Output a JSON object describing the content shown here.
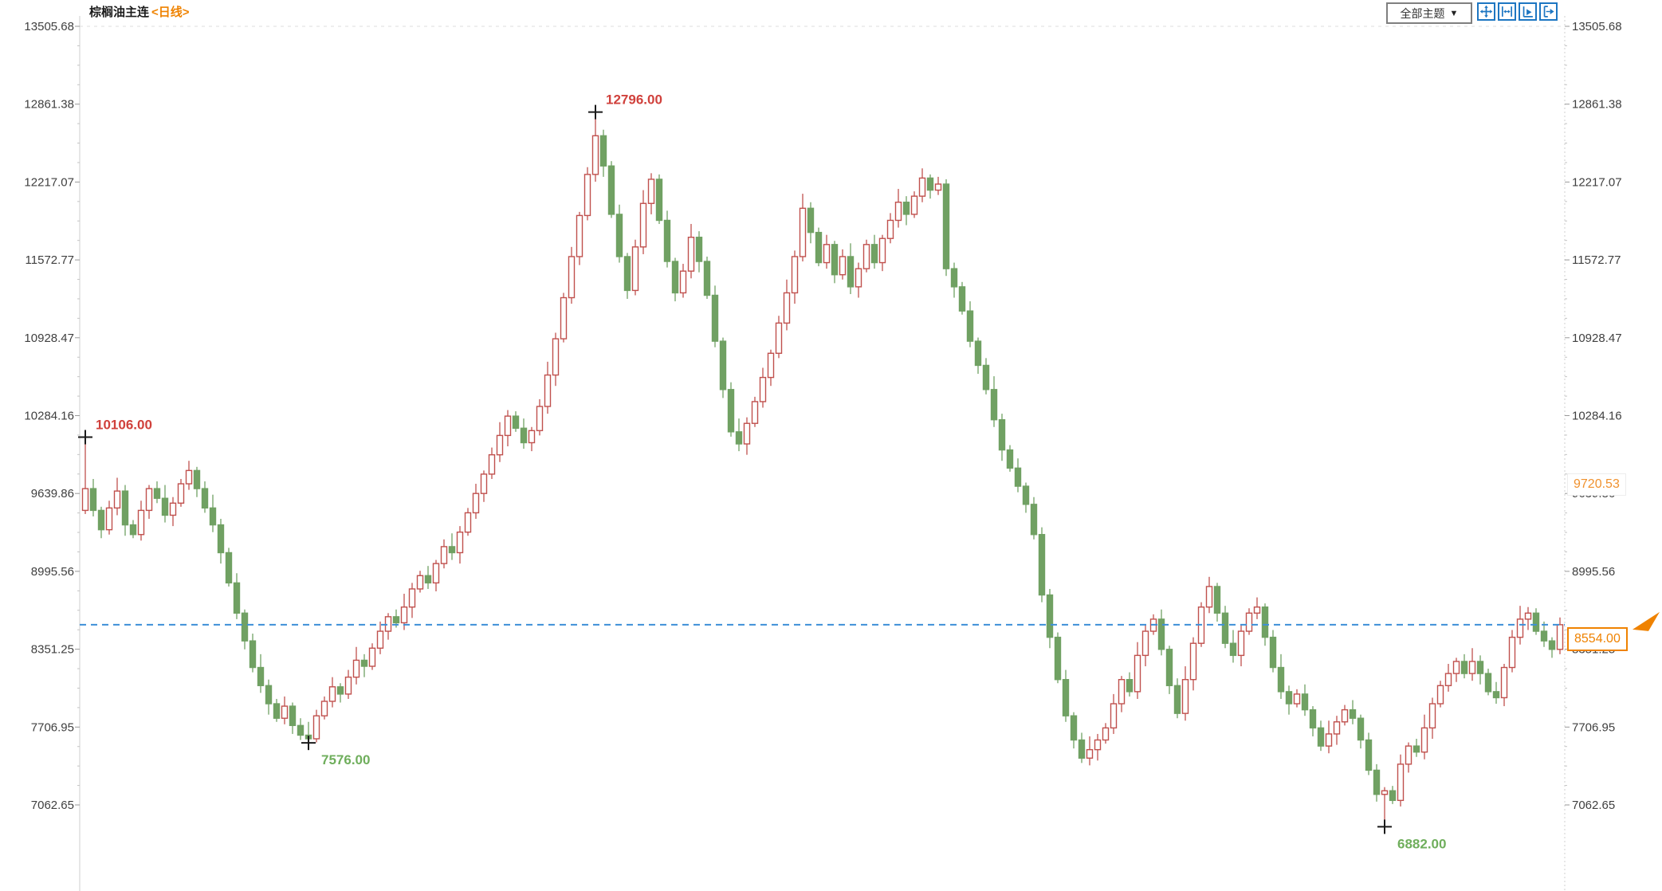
{
  "header": {
    "title": "棕榈油主连",
    "period_tag": "<日线>"
  },
  "toolbar": {
    "theme_dropdown_label": "全部主题",
    "dropdown_arrow": "▼",
    "icons": [
      "pan-icon",
      "fit-y-axis-icon",
      "fit-x-axis-icon",
      "scroll-right-icon"
    ]
  },
  "colors": {
    "up": "#c0504d",
    "down": "#70a163",
    "current_line": "#3d8fd8",
    "accent_orange": "#ef8200",
    "axis_text": "#3f3f3f",
    "grid": "#cfcfcf",
    "marker_cross": "#1a1a1a"
  },
  "price_labels": {
    "current": "8554.00",
    "reference": "9720.53"
  },
  "chart_data": {
    "type": "candlestick",
    "title": "棕榈油主连 日线",
    "legend_position": "none",
    "grid": "top-line-only",
    "y_axis": {
      "tick_labels": [
        "13505.68",
        "12861.38",
        "12217.07",
        "11572.77",
        "10928.47",
        "10284.16",
        "9639.86",
        "8995.56",
        "8351.25",
        "7706.95",
        "7062.65"
      ],
      "tick_prices": [
        13505.68,
        12861.38,
        12217.07,
        11572.77,
        10928.47,
        10284.16,
        9639.86,
        8995.56,
        8351.25,
        7706.95,
        7062.65
      ],
      "top_price": 13505.68,
      "bottom_price": 7062.65
    },
    "current_price": 8554.0,
    "reference_price": 9720.53,
    "annotations": [
      {
        "text": "10106.00",
        "price": 10106,
        "index": 0,
        "kind": "high",
        "color": "#d0413c"
      },
      {
        "text": "12796.00",
        "price": 12796,
        "index": 64,
        "kind": "high",
        "color": "#d0413c"
      },
      {
        "text": "7576.00",
        "price": 7576,
        "index": 28,
        "kind": "low",
        "color": "#6fae5c"
      },
      {
        "text": "6882.00",
        "price": 6882,
        "index": 163,
        "kind": "low",
        "color": "#6fae5c"
      }
    ],
    "candles": [
      [
        9500,
        10106,
        9470,
        9680
      ],
      [
        9680,
        9760,
        9450,
        9500
      ],
      [
        9500,
        9530,
        9270,
        9340
      ],
      [
        9340,
        9580,
        9300,
        9520
      ],
      [
        9520,
        9770,
        9460,
        9660
      ],
      [
        9660,
        9710,
        9290,
        9380
      ],
      [
        9380,
        9420,
        9270,
        9300
      ],
      [
        9300,
        9580,
        9250,
        9500
      ],
      [
        9500,
        9710,
        9430,
        9680
      ],
      [
        9680,
        9740,
        9560,
        9600
      ],
      [
        9600,
        9710,
        9400,
        9460
      ],
      [
        9460,
        9610,
        9370,
        9560
      ],
      [
        9560,
        9760,
        9530,
        9720
      ],
      [
        9720,
        9910,
        9670,
        9830
      ],
      [
        9830,
        9860,
        9610,
        9680
      ],
      [
        9680,
        9740,
        9480,
        9520
      ],
      [
        9520,
        9630,
        9320,
        9380
      ],
      [
        9380,
        9430,
        9060,
        9150
      ],
      [
        9150,
        9190,
        8870,
        8900
      ],
      [
        8900,
        8980,
        8600,
        8650
      ],
      [
        8650,
        8680,
        8350,
        8420
      ],
      [
        8420,
        8480,
        8160,
        8200
      ],
      [
        8200,
        8310,
        7990,
        8050
      ],
      [
        8050,
        8100,
        7810,
        7900
      ],
      [
        7900,
        7940,
        7750,
        7780
      ],
      [
        7780,
        7960,
        7730,
        7880
      ],
      [
        7880,
        7910,
        7650,
        7720
      ],
      [
        7720,
        7780,
        7600,
        7640
      ],
      [
        7640,
        7750,
        7576,
        7610
      ],
      [
        7610,
        7850,
        7580,
        7800
      ],
      [
        7800,
        7960,
        7770,
        7920
      ],
      [
        7920,
        8120,
        7870,
        8040
      ],
      [
        8040,
        8070,
        7910,
        7980
      ],
      [
        7980,
        8180,
        7940,
        8120
      ],
      [
        8120,
        8370,
        8060,
        8260
      ],
      [
        8260,
        8310,
        8120,
        8210
      ],
      [
        8210,
        8400,
        8180,
        8360
      ],
      [
        8360,
        8580,
        8310,
        8500
      ],
      [
        8500,
        8650,
        8430,
        8620
      ],
      [
        8620,
        8680,
        8530,
        8570
      ],
      [
        8570,
        8810,
        8510,
        8700
      ],
      [
        8700,
        8900,
        8610,
        8850
      ],
      [
        8850,
        9000,
        8820,
        8960
      ],
      [
        8960,
        9040,
        8850,
        8900
      ],
      [
        8900,
        9090,
        8830,
        9060
      ],
      [
        9060,
        9260,
        9020,
        9200
      ],
      [
        9200,
        9310,
        9090,
        9150
      ],
      [
        9150,
        9370,
        9060,
        9320
      ],
      [
        9320,
        9520,
        9290,
        9480
      ],
      [
        9480,
        9720,
        9430,
        9640
      ],
      [
        9640,
        9830,
        9570,
        9800
      ],
      [
        9800,
        10020,
        9760,
        9960
      ],
      [
        9960,
        10230,
        9900,
        10120
      ],
      [
        10120,
        10330,
        10030,
        10280
      ],
      [
        10280,
        10320,
        10150,
        10180
      ],
      [
        10180,
        10260,
        10010,
        10060
      ],
      [
        10060,
        10190,
        9990,
        10160
      ],
      [
        10160,
        10420,
        10120,
        10360
      ],
      [
        10360,
        10730,
        10300,
        10620
      ],
      [
        10620,
        10970,
        10530,
        10920
      ],
      [
        10920,
        11300,
        10890,
        11260
      ],
      [
        11260,
        11680,
        11210,
        11600
      ],
      [
        11600,
        11970,
        11530,
        11940
      ],
      [
        11940,
        12340,
        11900,
        12280
      ],
      [
        12280,
        12796,
        12220,
        12600
      ],
      [
        12600,
        12650,
        12260,
        12350
      ],
      [
        12350,
        12390,
        11920,
        11950
      ],
      [
        11950,
        12030,
        11550,
        11600
      ],
      [
        11600,
        11630,
        11250,
        11320
      ],
      [
        11320,
        11740,
        11280,
        11680
      ],
      [
        11680,
        12150,
        11620,
        12040
      ],
      [
        12040,
        12290,
        11950,
        12240
      ],
      [
        12240,
        12280,
        11870,
        11900
      ],
      [
        11900,
        11980,
        11510,
        11560
      ],
      [
        11560,
        11590,
        11230,
        11300
      ],
      [
        11300,
        11540,
        11260,
        11480
      ],
      [
        11480,
        11870,
        11420,
        11760
      ],
      [
        11760,
        11810,
        11470,
        11560
      ],
      [
        11560,
        11600,
        11250,
        11280
      ],
      [
        11280,
        11360,
        10850,
        10900
      ],
      [
        10900,
        10930,
        10430,
        10500
      ],
      [
        10500,
        10560,
        10110,
        10150
      ],
      [
        10150,
        10260,
        9990,
        10050
      ],
      [
        10050,
        10270,
        9960,
        10220
      ],
      [
        10220,
        10440,
        10190,
        10400
      ],
      [
        10400,
        10680,
        10350,
        10600
      ],
      [
        10600,
        10830,
        10530,
        10800
      ],
      [
        10800,
        11110,
        10760,
        11050
      ],
      [
        11050,
        11410,
        10990,
        11300
      ],
      [
        11300,
        11650,
        11210,
        11600
      ],
      [
        11600,
        12120,
        11560,
        12000
      ],
      [
        12000,
        12050,
        11710,
        11800
      ],
      [
        11800,
        11840,
        11520,
        11550
      ],
      [
        11550,
        11780,
        11500,
        11700
      ],
      [
        11700,
        11730,
        11380,
        11450
      ],
      [
        11450,
        11660,
        11410,
        11600
      ],
      [
        11600,
        11710,
        11290,
        11350
      ],
      [
        11350,
        11550,
        11260,
        11500
      ],
      [
        11500,
        11740,
        11470,
        11700
      ],
      [
        11700,
        11780,
        11500,
        11550
      ],
      [
        11550,
        11780,
        11480,
        11750
      ],
      [
        11750,
        11960,
        11710,
        11900
      ],
      [
        11900,
        12160,
        11840,
        12050
      ],
      [
        12050,
        12100,
        11860,
        11950
      ],
      [
        11950,
        12140,
        11920,
        12100
      ],
      [
        12100,
        12330,
        12050,
        12250
      ],
      [
        12250,
        12280,
        12080,
        12150
      ],
      [
        12150,
        12260,
        12110,
        12200
      ],
      [
        12200,
        12240,
        11440,
        11500
      ],
      [
        11500,
        11550,
        11260,
        11350
      ],
      [
        11350,
        11390,
        11120,
        11150
      ],
      [
        11150,
        11230,
        10850,
        10900
      ],
      [
        10900,
        10930,
        10630,
        10700
      ],
      [
        10700,
        10760,
        10460,
        10500
      ],
      [
        10500,
        10610,
        10190,
        10250
      ],
      [
        10250,
        10300,
        9910,
        10000
      ],
      [
        10000,
        10040,
        9820,
        9850
      ],
      [
        9850,
        9930,
        9650,
        9700
      ],
      [
        9700,
        9730,
        9480,
        9550
      ],
      [
        9550,
        9610,
        9260,
        9300
      ],
      [
        9300,
        9360,
        8740,
        8800
      ],
      [
        8800,
        8850,
        8360,
        8450
      ],
      [
        8450,
        8490,
        8070,
        8100
      ],
      [
        8100,
        8180,
        7750,
        7800
      ],
      [
        7800,
        7830,
        7530,
        7600
      ],
      [
        7600,
        7660,
        7410,
        7450
      ],
      [
        7450,
        7630,
        7390,
        7520
      ],
      [
        7520,
        7650,
        7430,
        7600
      ],
      [
        7600,
        7740,
        7570,
        7700
      ],
      [
        7700,
        7980,
        7650,
        7900
      ],
      [
        7900,
        8130,
        7830,
        8100
      ],
      [
        8100,
        8160,
        7960,
        8000
      ],
      [
        8000,
        8410,
        7940,
        8300
      ],
      [
        8300,
        8550,
        8210,
        8500
      ],
      [
        8500,
        8640,
        8470,
        8600
      ],
      [
        8600,
        8680,
        8300,
        8350
      ],
      [
        8350,
        8380,
        7980,
        8050
      ],
      [
        8050,
        8110,
        7780,
        7820
      ],
      [
        7820,
        8210,
        7760,
        8100
      ],
      [
        8100,
        8450,
        8010,
        8400
      ],
      [
        8400,
        8740,
        8370,
        8700
      ],
      [
        8700,
        8950,
        8650,
        8870
      ],
      [
        8870,
        8900,
        8580,
        8650
      ],
      [
        8650,
        8710,
        8360,
        8400
      ],
      [
        8400,
        8510,
        8240,
        8300
      ],
      [
        8300,
        8550,
        8210,
        8500
      ],
      [
        8500,
        8690,
        8470,
        8650
      ],
      [
        8650,
        8780,
        8600,
        8700
      ],
      [
        8700,
        8730,
        8380,
        8450
      ],
      [
        8450,
        8510,
        8160,
        8200
      ],
      [
        8200,
        8310,
        7940,
        8000
      ],
      [
        8000,
        8050,
        7810,
        7900
      ],
      [
        7900,
        8020,
        7870,
        7980
      ],
      [
        7980,
        8060,
        7800,
        7850
      ],
      [
        7850,
        7880,
        7630,
        7700
      ],
      [
        7700,
        7760,
        7510,
        7550
      ],
      [
        7550,
        7760,
        7490,
        7650
      ],
      [
        7650,
        7800,
        7560,
        7750
      ],
      [
        7750,
        7890,
        7720,
        7850
      ],
      [
        7850,
        7930,
        7730,
        7780
      ],
      [
        7780,
        7810,
        7530,
        7600
      ],
      [
        7600,
        7660,
        7310,
        7350
      ],
      [
        7350,
        7400,
        7090,
        7150
      ],
      [
        7150,
        7210,
        6882,
        7180
      ],
      [
        7180,
        7220,
        7070,
        7100
      ],
      [
        7100,
        7480,
        7050,
        7400
      ],
      [
        7400,
        7580,
        7330,
        7550
      ],
      [
        7550,
        7610,
        7460,
        7500
      ],
      [
        7500,
        7810,
        7440,
        7700
      ],
      [
        7700,
        7950,
        7610,
        7900
      ],
      [
        7900,
        8090,
        7870,
        8050
      ],
      [
        8050,
        8230,
        8000,
        8150
      ],
      [
        8150,
        8280,
        8080,
        8250
      ],
      [
        8250,
        8310,
        8110,
        8150
      ],
      [
        8150,
        8360,
        8090,
        8250
      ],
      [
        8250,
        8300,
        8060,
        8150
      ],
      [
        8150,
        8190,
        7970,
        8000
      ],
      [
        8000,
        8080,
        7900,
        7950
      ],
      [
        7950,
        8230,
        7880,
        8200
      ],
      [
        8200,
        8510,
        8160,
        8450
      ],
      [
        8450,
        8710,
        8390,
        8600
      ],
      [
        8600,
        8700,
        8510,
        8650
      ],
      [
        8650,
        8690,
        8470,
        8500
      ],
      [
        8500,
        8580,
        8370,
        8420
      ],
      [
        8420,
        8450,
        8280,
        8350
      ],
      [
        8350,
        8614,
        8310,
        8554
      ]
    ]
  }
}
